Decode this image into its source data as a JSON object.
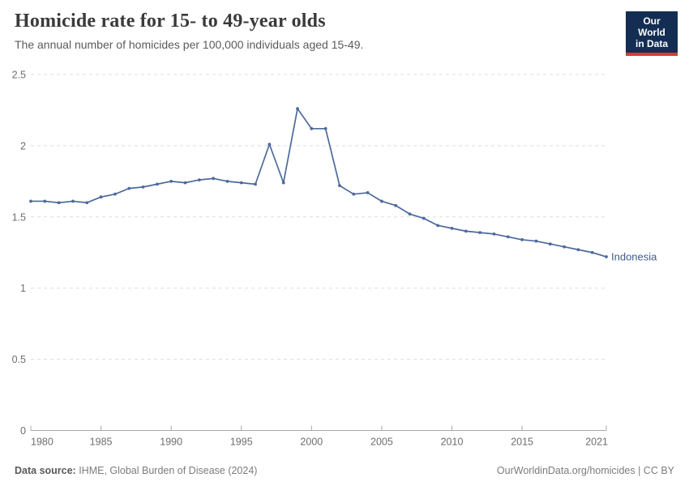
{
  "header": {
    "title": "Homicide rate for 15- to 49-year olds",
    "subtitle": "The annual number of homicides per 100,000 individuals aged 15-49.",
    "logo_line1": "Our World",
    "logo_line2": "in Data"
  },
  "chart_data": {
    "type": "line",
    "title": "Homicide rate for 15- to 49-year olds",
    "subtitle": "The annual number of homicides per 100,000 individuals aged 15-49.",
    "grid": "horizontal dashed",
    "legend_position": "end-of-line label",
    "xlim": [
      1980,
      2021
    ],
    "ylim": [
      0,
      2.5
    ],
    "xticks": [
      "1980",
      "1985",
      "1990",
      "1995",
      "2000",
      "2005",
      "2010",
      "2015",
      "2021"
    ],
    "yticks": [
      "0",
      "0.5",
      "1",
      "1.5",
      "2",
      "2.5"
    ],
    "series": [
      {
        "name": "Indonesia",
        "color": "#4c6a9c",
        "label_color": "#3d5c8c",
        "x": [
          1980,
          1981,
          1982,
          1983,
          1984,
          1985,
          1986,
          1987,
          1988,
          1989,
          1990,
          1991,
          1992,
          1993,
          1994,
          1995,
          1996,
          1997,
          1998,
          1999,
          2000,
          2001,
          2002,
          2003,
          2004,
          2005,
          2006,
          2007,
          2008,
          2009,
          2010,
          2011,
          2012,
          2013,
          2014,
          2015,
          2016,
          2017,
          2018,
          2019,
          2020,
          2021
        ],
        "values": [
          1.61,
          1.61,
          1.6,
          1.61,
          1.6,
          1.64,
          1.66,
          1.7,
          1.71,
          1.73,
          1.75,
          1.74,
          1.76,
          1.77,
          1.75,
          1.74,
          1.73,
          2.01,
          1.74,
          2.26,
          2.12,
          2.12,
          1.72,
          1.66,
          1.67,
          1.61,
          1.58,
          1.52,
          1.49,
          1.44,
          1.42,
          1.4,
          1.39,
          1.38,
          1.36,
          1.34,
          1.33,
          1.31,
          1.29,
          1.27,
          1.25,
          1.22
        ]
      }
    ]
  },
  "colors": {
    "line": "#4c6a9c",
    "gridline": "#dedede",
    "axis": "#a9a9a9",
    "tick_label": "#6e6e6e",
    "logo_bg": "#132e52",
    "logo_accent": "#d73a3a"
  },
  "footer": {
    "source_label": "Data source:",
    "source_text": " IHME, Global Burden of Disease (2024)",
    "right_text": "OurWorldinData.org/homicides | CC BY"
  }
}
